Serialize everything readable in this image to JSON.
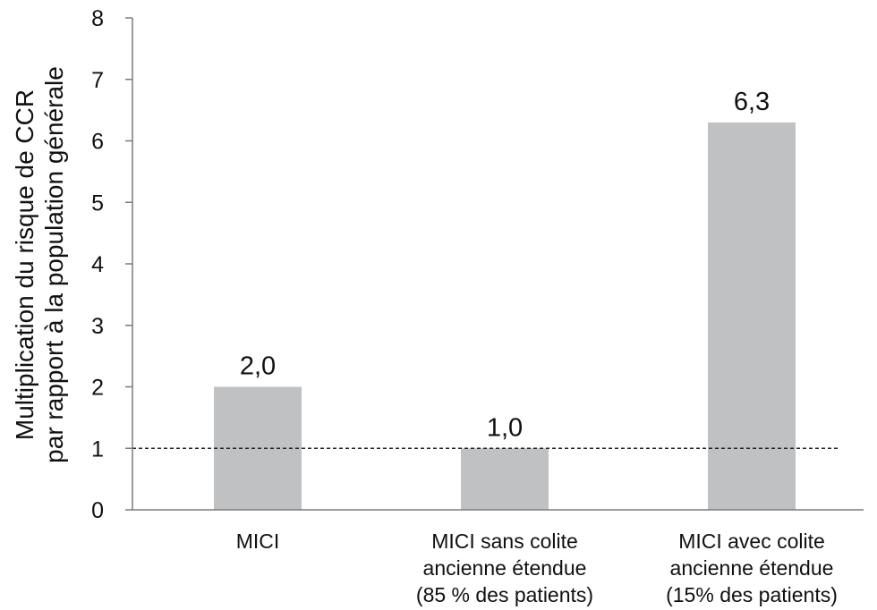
{
  "chart_data": {
    "type": "bar",
    "categories": [
      [
        "MICI"
      ],
      [
        "MICI sans colite",
        "ancienne étendue",
        "(85 % des patients)"
      ],
      [
        "MICI avec colite",
        "ancienne étendue",
        "(15% des patients)"
      ]
    ],
    "values": [
      2.0,
      1.0,
      6.3
    ],
    "value_labels": [
      "2,0",
      "1,0",
      "6,3"
    ],
    "ylabel_lines": [
      "Multiplication du risque de CCR",
      "par rapport à la population générale"
    ],
    "xlabel": "",
    "ylim": [
      0,
      8
    ],
    "yticks": [
      "0",
      "1",
      "2",
      "3",
      "4",
      "5",
      "6",
      "7",
      "8"
    ],
    "reference_line": {
      "y": 1,
      "style": "dashed"
    },
    "grid": false,
    "legend": "none",
    "bar_color": "#c0c1c3",
    "axis_color": "#7a7a7a",
    "reference_line_color": "#222222"
  }
}
